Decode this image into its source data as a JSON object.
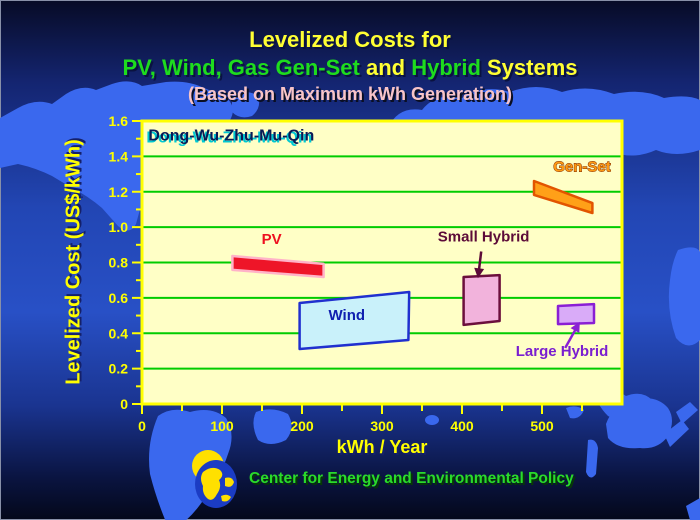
{
  "slide": {
    "title_line1": "Levelized Costs for",
    "title_color": "#FFFF33",
    "title_line2_segments": [
      {
        "text": "PV, Wind, Gas Gen-Set",
        "color": "#1EDC1E"
      },
      {
        "text": " and ",
        "color": "#FFFF33"
      },
      {
        "text": "Hybrid",
        "color": "#1EDC1E"
      },
      {
        "text": " Systems",
        "color": "#FFFF33"
      }
    ],
    "subtitle": "(Based on Maximum kWh Generation)",
    "subtitle_color": "#F8C4C8",
    "footer_org": "Center for Energy and Environmental Policy",
    "footer_color": "#2ADB2A",
    "logo_icon": "sun-globe-logo"
  },
  "chart_data": {
    "type": "area",
    "description": "Cost-band polygons of levelized cost vs annual kWh generation for five system types",
    "title": "Levelized Costs for PV, Wind, Gas Gen-Set and Hybrid Systems",
    "subtitle": "(Based on Maximum kWh Generation)",
    "region_annotation": {
      "text": "Dong-Wu-Zhu-Mu-Qin",
      "x": 8,
      "y": 1.49,
      "color": "#0A1A55",
      "shadow_color": "#00C8D2"
    },
    "xlabel": "kWh / Year",
    "ylabel": "Levelized Cost  (US$/kWh)",
    "xlim": [
      0,
      600
    ],
    "ylim": [
      0,
      1.6
    ],
    "xticks": [
      0,
      100,
      200,
      300,
      400,
      500
    ],
    "xtick_labels": [
      "0",
      "100",
      "200",
      "300",
      "400",
      "500"
    ],
    "xticks_minor": [
      50,
      150,
      250,
      350,
      450,
      550
    ],
    "yticks": [
      0,
      0.2,
      0.4,
      0.6,
      0.8,
      1.0,
      1.2,
      1.4,
      1.6
    ],
    "ytick_labels": [
      "0",
      "0.2",
      "0.4",
      "0.6",
      "0.8",
      "1.0",
      "1.2",
      "1.4",
      "1.6"
    ],
    "yticks_minor": [
      0.1,
      0.3,
      0.5,
      0.7,
      0.9,
      1.1,
      1.3,
      1.5
    ],
    "grid": true,
    "grid_color": "#00CC00",
    "axis_color": "#FFFF00",
    "tick_label_color": "#FFFF00",
    "plot_bg": "#FFFFC6",
    "series": [
      {
        "name": "PV",
        "x_range_kwh": [
          113,
          227
        ],
        "cost_range_usd_kwh": [
          0.72,
          0.84
        ],
        "polygon": [
          [
            113,
            0.837
          ],
          [
            227,
            0.792
          ],
          [
            227,
            0.718
          ],
          [
            113,
            0.758
          ]
        ],
        "fill": "#EE1528",
        "stroke": "#FFB3C8",
        "label": "PV",
        "label_color": "#EE1020",
        "label_pos": [
          162,
          0.905
        ]
      },
      {
        "name": "Wind",
        "x_range_kwh": [
          197,
          334
        ],
        "cost_range_usd_kwh": [
          0.31,
          0.63
        ],
        "polygon": [
          [
            197,
            0.571
          ],
          [
            334,
            0.633
          ],
          [
            333,
            0.362
          ],
          [
            197,
            0.311
          ]
        ],
        "fill": "#C9F1FA",
        "stroke": "#2030CF",
        "label": "Wind",
        "label_color": "#1020B0",
        "label_pos": [
          256,
          0.475
        ]
      },
      {
        "name": "Gen-Set",
        "x_range_kwh": [
          490,
          563
        ],
        "cost_range_usd_kwh": [
          1.08,
          1.26
        ],
        "polygon": [
          [
            490,
            1.261
          ],
          [
            563,
            1.136
          ],
          [
            563,
            1.08
          ],
          [
            490,
            1.182
          ]
        ],
        "fill": "#FFA018",
        "stroke": "#E25400",
        "label": "Gen-Set",
        "label_color": "#FF9912",
        "label_outline": "#7A2800",
        "label_pos": [
          550,
          1.315
        ]
      },
      {
        "name": "Small Hybrid",
        "x_range_kwh": [
          402,
          447
        ],
        "cost_range_usd_kwh": [
          0.45,
          0.73
        ],
        "polygon": [
          [
            402,
            0.718
          ],
          [
            447,
            0.729
          ],
          [
            447,
            0.469
          ],
          [
            402,
            0.447
          ]
        ],
        "fill": "#F2B3DC",
        "stroke": "#6B0F3C",
        "label": "Small Hybrid",
        "label_color": "#5C0B38",
        "label_pos": [
          427,
          0.92
        ],
        "arrow": {
          "from": [
            424,
            0.862
          ],
          "to": [
            421,
            0.75
          ],
          "color": "#5C0B38"
        }
      },
      {
        "name": "Large Hybrid",
        "x_range_kwh": [
          520,
          565
        ],
        "cost_range_usd_kwh": [
          0.45,
          0.56
        ],
        "polygon": [
          [
            520,
            0.554
          ],
          [
            565,
            0.565
          ],
          [
            565,
            0.458
          ],
          [
            520,
            0.452
          ]
        ],
        "fill": "#D9ABF8",
        "stroke": "#8A1FD4",
        "label": "Large Hybrid",
        "label_color": "#7A1ED0",
        "label_pos": [
          525,
          0.272
        ],
        "arrow": {
          "from": [
            529,
            0.317
          ],
          "to": [
            543,
            0.43
          ],
          "color": "#8A1FD4"
        }
      }
    ]
  }
}
